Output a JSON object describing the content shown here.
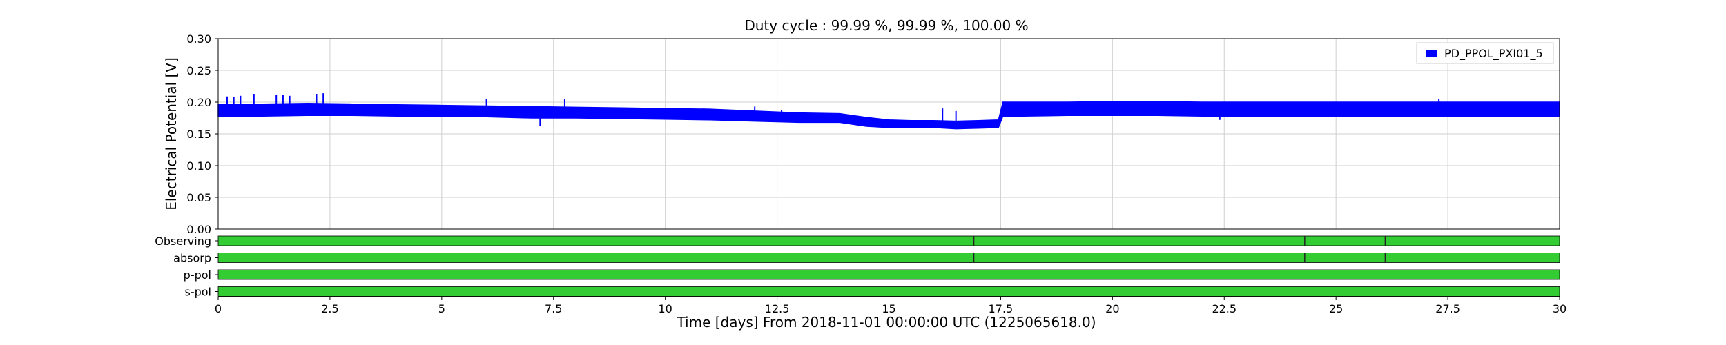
{
  "chart_data": {
    "type": "line",
    "title": "Duty cycle : 99.99 %, 99.99 %, 100.00 %",
    "xlabel": "Time [days] From 2018-11-01 00:00:00 UTC (1225065618.0)",
    "ylabel": "Electrical Potential [V]",
    "xlim": [
      0,
      30
    ],
    "ylim": [
      0,
      0.3
    ],
    "x_ticks": [
      0,
      2.5,
      5,
      7.5,
      10,
      12.5,
      15,
      17.5,
      20,
      22.5,
      25,
      27.5,
      30
    ],
    "x_tick_labels": [
      "0",
      "2.5",
      "5",
      "7.5",
      "10",
      "12.5",
      "15",
      "17.5",
      "20",
      "22.5",
      "25",
      "27.5",
      "30"
    ],
    "y_ticks": [
      0,
      0.05,
      0.1,
      0.15,
      0.2,
      0.25,
      0.3
    ],
    "y_tick_labels": [
      "0.00",
      "0.05",
      "0.10",
      "0.15",
      "0.20",
      "0.25",
      "0.30"
    ],
    "grid": true,
    "legend_position": "top-right",
    "series": [
      {
        "name": "PD_PPOL_PXI01_5",
        "color": "#0000ff",
        "x": [
          0,
          1,
          2,
          3,
          4,
          5,
          6,
          7,
          8,
          9,
          10,
          11,
          12,
          13,
          13.9,
          14.5,
          15,
          15.5,
          16,
          16.5,
          17,
          17.45,
          17.55,
          18,
          19,
          20,
          21,
          22,
          23,
          24,
          25,
          26,
          27,
          28,
          29,
          30
        ],
        "upper": [
          0.196,
          0.196,
          0.197,
          0.196,
          0.196,
          0.195,
          0.194,
          0.193,
          0.192,
          0.191,
          0.19,
          0.189,
          0.186,
          0.183,
          0.182,
          0.176,
          0.172,
          0.171,
          0.171,
          0.17,
          0.171,
          0.172,
          0.2,
          0.2,
          0.2,
          0.201,
          0.201,
          0.2,
          0.2,
          0.2,
          0.2,
          0.2,
          0.2,
          0.2,
          0.2,
          0.2
        ],
        "lower": [
          0.178,
          0.178,
          0.179,
          0.179,
          0.178,
          0.178,
          0.177,
          0.175,
          0.175,
          0.174,
          0.173,
          0.172,
          0.17,
          0.168,
          0.168,
          0.162,
          0.16,
          0.16,
          0.16,
          0.158,
          0.159,
          0.16,
          0.178,
          0.178,
          0.179,
          0.179,
          0.179,
          0.178,
          0.178,
          0.178,
          0.178,
          0.178,
          0.178,
          0.178,
          0.178,
          0.178
        ],
        "spikes": [
          [
            0.2,
            0.209
          ],
          [
            0.35,
            0.208
          ],
          [
            0.5,
            0.21
          ],
          [
            0.8,
            0.213
          ],
          [
            1.3,
            0.212
          ],
          [
            1.45,
            0.211
          ],
          [
            1.6,
            0.21
          ],
          [
            2.2,
            0.213
          ],
          [
            2.35,
            0.214
          ],
          [
            6.0,
            0.205
          ],
          [
            7.2,
            0.162
          ],
          [
            7.75,
            0.205
          ],
          [
            12.0,
            0.193
          ],
          [
            12.6,
            0.188
          ],
          [
            16.2,
            0.19
          ],
          [
            16.5,
            0.186
          ],
          [
            22.4,
            0.172
          ],
          [
            27.3,
            0.205
          ]
        ]
      }
    ],
    "state_segments": [
      {
        "label": "Observing",
        "color": "#33cc33",
        "gaps": [
          16.9,
          24.3,
          26.1
        ]
      },
      {
        "label": "absorp",
        "color": "#33cc33",
        "gaps": [
          16.9,
          24.3,
          26.1
        ]
      },
      {
        "label": "p-pol",
        "color": "#33cc33",
        "gaps": []
      },
      {
        "label": "s-pol",
        "color": "#33cc33",
        "gaps": []
      }
    ]
  }
}
